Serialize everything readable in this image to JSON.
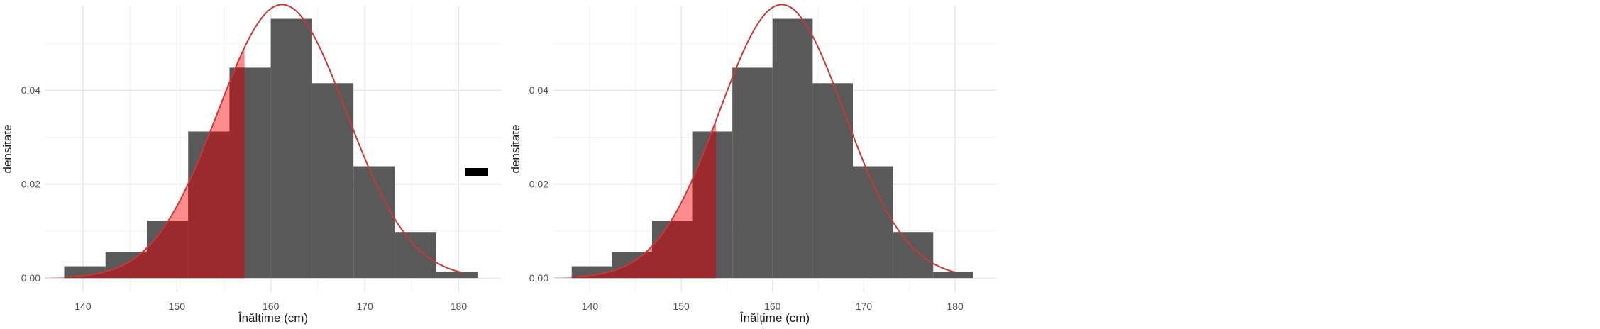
{
  "chart_data": [
    {
      "type": "bar",
      "xlabel": "Înălțime (cm)",
      "ylabel": "densitate",
      "xlim": [
        136,
        184.5
      ],
      "ylim": [
        -0.003,
        0.058
      ],
      "xticks": [
        "140",
        "150",
        "160",
        "170",
        "180"
      ],
      "yticks": [
        "0,00",
        "0,02",
        "0,04"
      ],
      "grid": true,
      "bins": [
        {
          "x0": 138,
          "x1": 142.4,
          "density": 0.0025
        },
        {
          "x0": 142.4,
          "x1": 146.8,
          "density": 0.0055
        },
        {
          "x0": 146.8,
          "x1": 151.2,
          "density": 0.0122
        },
        {
          "x0": 151.2,
          "x1": 155.6,
          "density": 0.0312
        },
        {
          "x0": 155.6,
          "x1": 160.0,
          "density": 0.0448
        },
        {
          "x0": 160.0,
          "x1": 164.4,
          "density": 0.0552
        },
        {
          "x0": 164.4,
          "x1": 168.8,
          "density": 0.0415
        },
        {
          "x0": 168.8,
          "x1": 173.2,
          "density": 0.0238
        },
        {
          "x0": 173.2,
          "x1": 177.6,
          "density": 0.0098
        },
        {
          "x0": 177.6,
          "x1": 182.0,
          "density": 0.0013
        }
      ],
      "normal_curve": {
        "mean": 161.2,
        "sd": 6.85,
        "x_range": [
          138.5,
          180.5
        ]
      },
      "shaded_below_x": 157.2,
      "colors": {
        "bar": "#595959",
        "curve": "#c43a3a",
        "shade_area": "#ff8c8c",
        "shade_bar": "#9b2a2f",
        "marker": "#000000"
      },
      "has_dash_marker": true
    },
    {
      "type": "bar",
      "xlabel": "Înălțime (cm)",
      "ylabel": "densitate",
      "xlim": [
        136,
        184.5
      ],
      "ylim": [
        -0.003,
        0.058
      ],
      "xticks": [
        "140",
        "150",
        "160",
        "170",
        "180"
      ],
      "yticks": [
        "0,00",
        "0,02",
        "0,04"
      ],
      "grid": true,
      "bins": [
        {
          "x0": 138,
          "x1": 142.4,
          "density": 0.0025
        },
        {
          "x0": 142.4,
          "x1": 146.8,
          "density": 0.0055
        },
        {
          "x0": 146.8,
          "x1": 151.2,
          "density": 0.0122
        },
        {
          "x0": 151.2,
          "x1": 155.6,
          "density": 0.0312
        },
        {
          "x0": 155.6,
          "x1": 160.0,
          "density": 0.0448
        },
        {
          "x0": 160.0,
          "x1": 164.4,
          "density": 0.0552
        },
        {
          "x0": 164.4,
          "x1": 168.8,
          "density": 0.0415
        },
        {
          "x0": 168.8,
          "x1": 173.2,
          "density": 0.0238
        },
        {
          "x0": 173.2,
          "x1": 177.6,
          "density": 0.0098
        },
        {
          "x0": 177.6,
          "x1": 182.0,
          "density": 0.0013
        }
      ],
      "normal_curve": {
        "mean": 161.0,
        "sd": 6.85,
        "x_range": [
          138.5,
          180.0
        ]
      },
      "shaded_below_x": 153.8,
      "colors": {
        "bar": "#595959",
        "curve": "#c43a3a",
        "shade_area": "#ff8c8c",
        "shade_bar": "#9b2a2f",
        "marker": "#000000"
      },
      "has_dash_marker": false
    }
  ]
}
